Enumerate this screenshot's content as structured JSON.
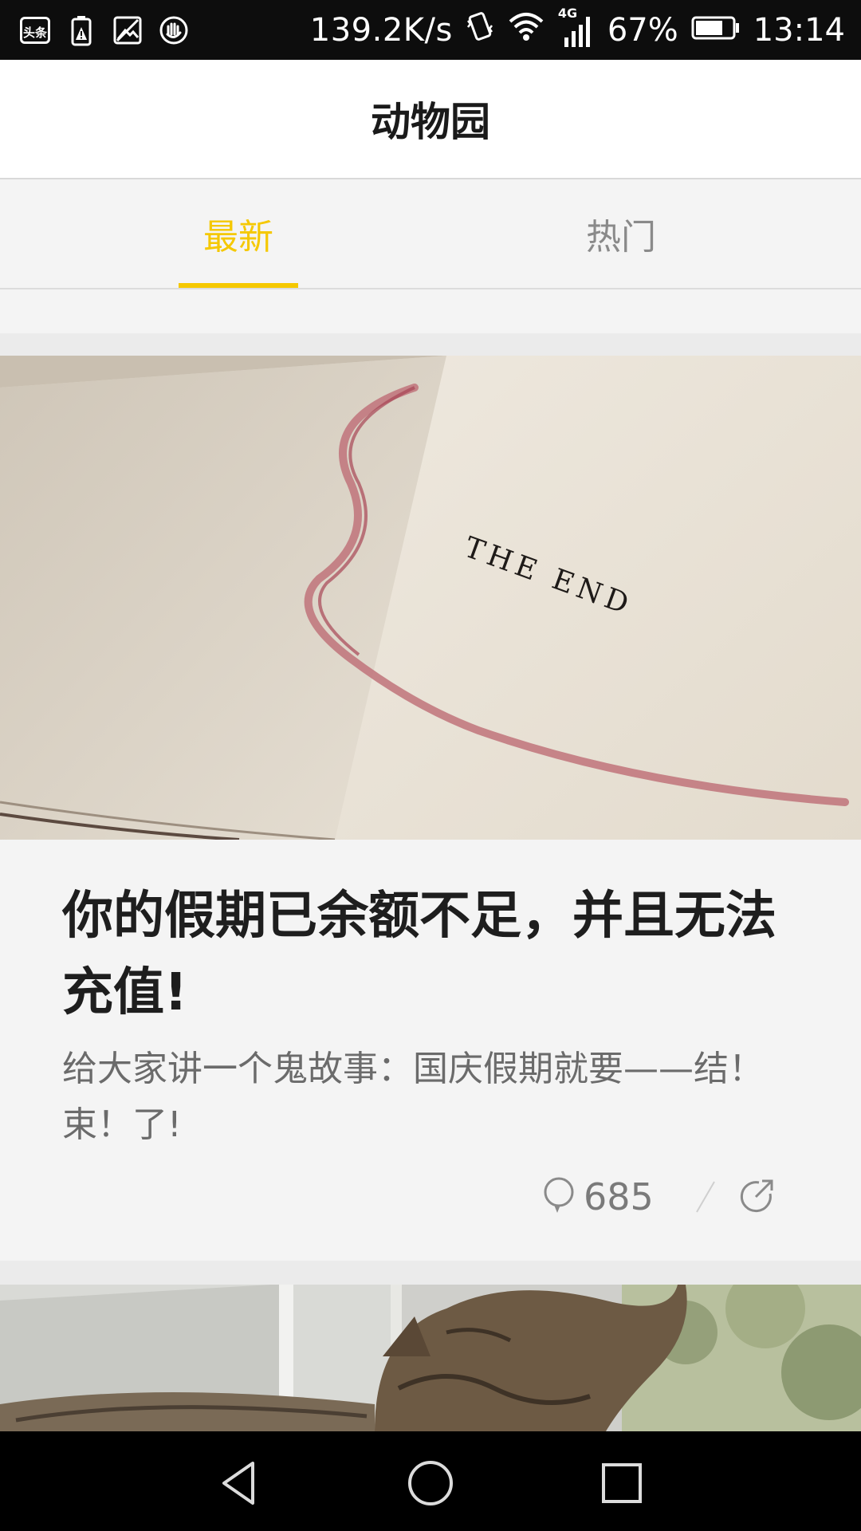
{
  "status_bar": {
    "app_badge": "头条",
    "net_speed": "139.2K/s",
    "network_type": "4G",
    "battery": "67%",
    "time": "13:14"
  },
  "header": {
    "title": "动物园"
  },
  "tabs": [
    {
      "label": "最新",
      "active": true
    },
    {
      "label": "热门",
      "active": false
    }
  ],
  "colors": {
    "accent": "#f5c800",
    "inactive_tab": "#8a8a8a"
  },
  "feed": {
    "cards": [
      {
        "image_text": "THE END",
        "title": "你的假期已余额不足，并且无法充值!",
        "description": "给大家讲一个鬼故事：国庆假期就要——结！束！了!",
        "comment_count": "685"
      }
    ]
  }
}
